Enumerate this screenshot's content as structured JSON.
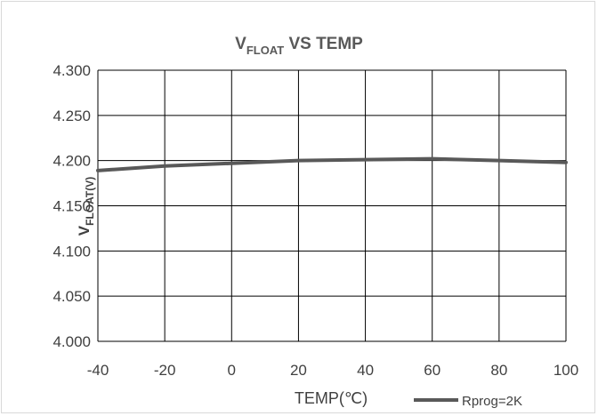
{
  "chart_data": {
    "type": "line",
    "title": {
      "main": "V",
      "sub": "FLOAT",
      "rest": " VS TEMP"
    },
    "xlabel": "TEMP(℃)",
    "ylabel": {
      "main": "V",
      "sub": "FLOAT(V)"
    },
    "x_ticks": [
      "-40",
      "-20",
      "0",
      "20",
      "40",
      "60",
      "80",
      "100"
    ],
    "y_ticks": [
      "4.300",
      "4.250",
      "4.200",
      "4.150",
      "4.100",
      "4.050",
      "4.000"
    ],
    "xlim": [
      -40,
      100
    ],
    "ylim": [
      4.0,
      4.3
    ],
    "grid": true,
    "legend_position": "bottom-right",
    "series_color": "#595959",
    "series": [
      {
        "name": "Rprog=2K",
        "x": [
          -40,
          -20,
          0,
          20,
          40,
          60,
          80,
          100
        ],
        "y": [
          4.189,
          4.194,
          4.197,
          4.2,
          4.201,
          4.202,
          4.2,
          4.198
        ]
      }
    ]
  }
}
